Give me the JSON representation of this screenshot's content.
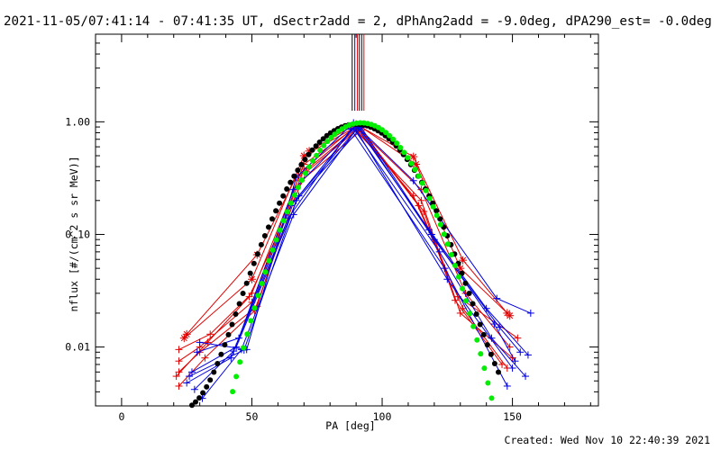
{
  "chart_data": {
    "type": "scatter",
    "title": "2021-11-05/07:41:14 - 07:41:35 UT, dSectr2add = 2, dPhAng2add = -9.0deg, dPA290_est= -0.0deg",
    "xlabel": "PA [deg]",
    "ylabel": "nflux [#/(cm^2 s sr MeV)]",
    "xlim": [
      -10,
      183
    ],
    "ylim": [
      0.003,
      6.0
    ],
    "yscale": "log",
    "x_ticks": [
      0,
      50,
      100,
      150
    ],
    "x_tick_labels": [
      "0",
      "50",
      "100",
      "150"
    ],
    "y_ticks": [
      0.01,
      0.1,
      1.0
    ],
    "y_tick_labels": [
      "0.01",
      "0.10",
      "1.00"
    ],
    "footer": "Created: Wed Nov 10 22:40:39 2021",
    "colors": {
      "red": "#e00000",
      "blue": "#0000e0",
      "green": "#00ee00",
      "black": "#000000",
      "gray": "#707070"
    },
    "vertical_lines": [
      {
        "x": 88.5,
        "color": "#000000"
      },
      {
        "x": 89.5,
        "color": "#0000e0"
      },
      {
        "x": 90.5,
        "color": "#e00000"
      },
      {
        "x": 91.3,
        "color": "#000000"
      },
      {
        "x": 92.2,
        "color": "#0000e0"
      },
      {
        "x": 93.0,
        "color": "#e00000"
      }
    ],
    "series": [
      {
        "color": "#e00000",
        "marker": "star",
        "points": [
          [
            25,
            0.013
          ],
          [
            52,
            0.066
          ],
          [
            72,
            0.55
          ],
          [
            90,
            0.95
          ],
          [
            112,
            0.49
          ],
          [
            131,
            0.059
          ],
          [
            148,
            0.02
          ]
        ]
      },
      {
        "color": "#e00000",
        "marker": "star",
        "points": [
          [
            24,
            0.012
          ],
          [
            50,
            0.04
          ],
          [
            70,
            0.5
          ],
          [
            91,
            0.93
          ],
          [
            113,
            0.42
          ],
          [
            130,
            0.05
          ],
          [
            149,
            0.019
          ]
        ]
      },
      {
        "color": "#e00000",
        "marker": "plus",
        "points": [
          [
            22,
            0.0095
          ],
          [
            34,
            0.013
          ],
          [
            50,
            0.03
          ],
          [
            70,
            0.42
          ],
          [
            90,
            0.9
          ],
          [
            115,
            0.25
          ],
          [
            132,
            0.03
          ],
          [
            149,
            0.01
          ]
        ]
      },
      {
        "color": "#e00000",
        "marker": "plus",
        "points": [
          [
            22,
            0.0075
          ],
          [
            30,
            0.01
          ],
          [
            50,
            0.025
          ],
          [
            70,
            0.38
          ],
          [
            89,
            0.88
          ],
          [
            115,
            0.2
          ],
          [
            130,
            0.02
          ],
          [
            150,
            0.008
          ]
        ]
      },
      {
        "color": "#e00000",
        "marker": "plus",
        "points": [
          [
            22,
            0.006
          ],
          [
            30,
            0.009
          ],
          [
            52,
            0.023
          ],
          [
            68,
            0.33
          ],
          [
            90,
            0.86
          ],
          [
            112,
            0.22
          ],
          [
            129,
            0.028
          ],
          [
            152,
            0.012
          ]
        ]
      },
      {
        "color": "#e00000",
        "marker": "plus",
        "points": [
          [
            22,
            0.0045
          ],
          [
            32,
            0.008
          ],
          [
            51,
            0.021
          ],
          [
            69,
            0.3
          ],
          [
            92,
            0.84
          ],
          [
            116,
            0.16
          ],
          [
            128,
            0.026
          ],
          [
            146,
            0.007
          ]
        ]
      },
      {
        "color": "#e00000",
        "marker": "plus",
        "points": [
          [
            21,
            0.0055
          ],
          [
            33,
            0.011
          ],
          [
            49,
            0.028
          ],
          [
            71,
            0.36
          ],
          [
            91,
            0.87
          ],
          [
            114,
            0.18
          ],
          [
            131,
            0.022
          ],
          [
            148,
            0.0065
          ]
        ]
      },
      {
        "color": "#0000e0",
        "marker": "plus",
        "points": [
          [
            30,
            0.011
          ],
          [
            48,
            0.0095
          ],
          [
            67,
            0.32
          ],
          [
            89,
            0.98
          ],
          [
            112,
            0.3
          ],
          [
            144,
            0.027
          ],
          [
            157,
            0.02
          ]
        ]
      },
      {
        "color": "#0000e0",
        "marker": "plus",
        "points": [
          [
            29,
            0.009
          ],
          [
            45,
            0.012
          ],
          [
            66,
            0.25
          ],
          [
            90,
            0.92
          ],
          [
            118,
            0.11
          ],
          [
            140,
            0.022
          ],
          [
            156,
            0.0085
          ]
        ]
      },
      {
        "color": "#0000e0",
        "marker": "plus",
        "points": [
          [
            27,
            0.006
          ],
          [
            44,
            0.01
          ],
          [
            68,
            0.22
          ],
          [
            91,
            0.9
          ],
          [
            120,
            0.09
          ],
          [
            145,
            0.015
          ],
          [
            153,
            0.009
          ]
        ]
      },
      {
        "color": "#0000e0",
        "marker": "plus",
        "points": [
          [
            25,
            0.0048
          ],
          [
            42,
            0.008
          ],
          [
            65,
            0.18
          ],
          [
            89,
            0.88
          ],
          [
            122,
            0.07
          ],
          [
            142,
            0.012
          ],
          [
            155,
            0.0055
          ]
        ]
      },
      {
        "color": "#0000e0",
        "marker": "plus",
        "points": [
          [
            31,
            0.0035
          ],
          [
            46,
            0.0095
          ],
          [
            66,
            0.15
          ],
          [
            90,
            0.85
          ],
          [
            125,
            0.04
          ],
          [
            150,
            0.0065
          ]
        ]
      },
      {
        "color": "#0000e0",
        "marker": "plus",
        "points": [
          [
            28,
            0.0042
          ],
          [
            43,
            0.0092
          ],
          [
            64,
            0.14
          ],
          [
            88,
            0.86
          ],
          [
            124,
            0.05
          ],
          [
            148,
            0.0045
          ]
        ]
      },
      {
        "color": "#0000e0",
        "marker": "plus",
        "points": [
          [
            26,
            0.0055
          ],
          [
            47,
            0.0094
          ],
          [
            67,
            0.2
          ],
          [
            92,
            0.89
          ],
          [
            119,
            0.1
          ],
          [
            143,
            0.016
          ],
          [
            151,
            0.0075
          ]
        ]
      }
    ],
    "black_fit": {
      "color": "#000000",
      "x_start": 20,
      "x_end": 145,
      "step": 1.4,
      "center": 90,
      "peak": 0.95,
      "sigma": 16.3,
      "floor": 0.003
    },
    "green_fit": {
      "color": "#00ee00",
      "x_start": 37,
      "x_end": 143,
      "step": 1.4,
      "center": 92,
      "peak": 0.98,
      "sigma": 14.9
    }
  }
}
